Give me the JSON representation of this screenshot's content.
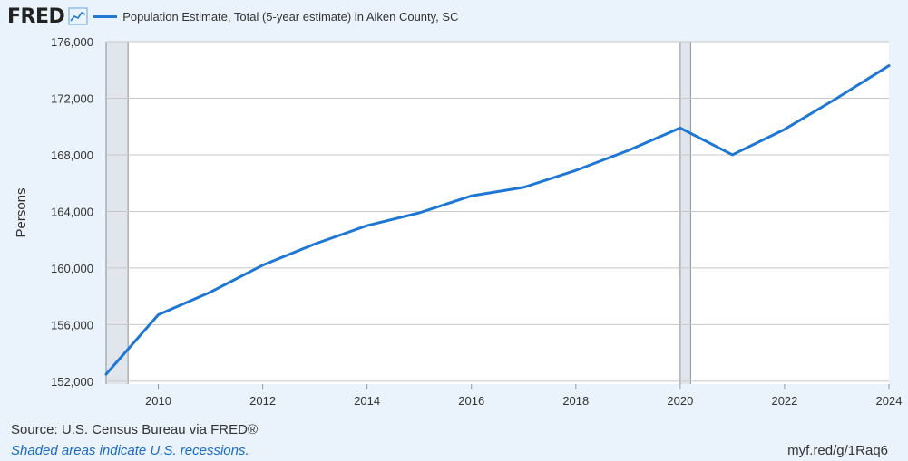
{
  "header": {
    "logo_text": "FRED",
    "legend_label": "Population Estimate, Total (5-year estimate) in Aiken County, SC"
  },
  "chart_data": {
    "type": "line",
    "ylabel": "Persons",
    "xlim": [
      2009,
      2024
    ],
    "ylim": [
      151800,
      176000
    ],
    "yticks": [
      152000,
      156000,
      160000,
      164000,
      168000,
      172000,
      176000
    ],
    "ytick_labels": [
      "152,000",
      "156,000",
      "160,000",
      "164,000",
      "168,000",
      "172,000",
      "176,000"
    ],
    "xticks": [
      2010,
      2012,
      2014,
      2016,
      2018,
      2020,
      2022,
      2024
    ],
    "xtick_labels": [
      "2010",
      "2012",
      "2014",
      "2016",
      "2018",
      "2020",
      "2022",
      "2024"
    ],
    "grid": true,
    "series": [
      {
        "name": "Population Estimate, Total (5-year estimate) in Aiken County, SC",
        "color": "#1f77d4",
        "x": [
          2009,
          2010,
          2011,
          2012,
          2013,
          2014,
          2015,
          2016,
          2017,
          2018,
          2019,
          2020,
          2021,
          2022,
          2023,
          2024
        ],
        "y": [
          152500,
          156700,
          158300,
          160200,
          161700,
          163000,
          163900,
          165100,
          165700,
          166900,
          168300,
          169900,
          168000,
          169800,
          172000,
          174300
        ]
      }
    ],
    "recessions": [
      [
        2009.0,
        2009.42
      ],
      [
        2020.0,
        2020.2
      ]
    ]
  },
  "footer": {
    "source": "Source: U.S. Census Bureau via FRED®",
    "note": "Shaded areas indicate U.S. recessions.",
    "link": "myf.red/g/1Raq6"
  },
  "colors": {
    "background": "#eaf3fb",
    "plot_background": "#ffffff",
    "grid": "#c8c8c8",
    "recession": "#e1e6ec",
    "line": "#1f77d4"
  }
}
